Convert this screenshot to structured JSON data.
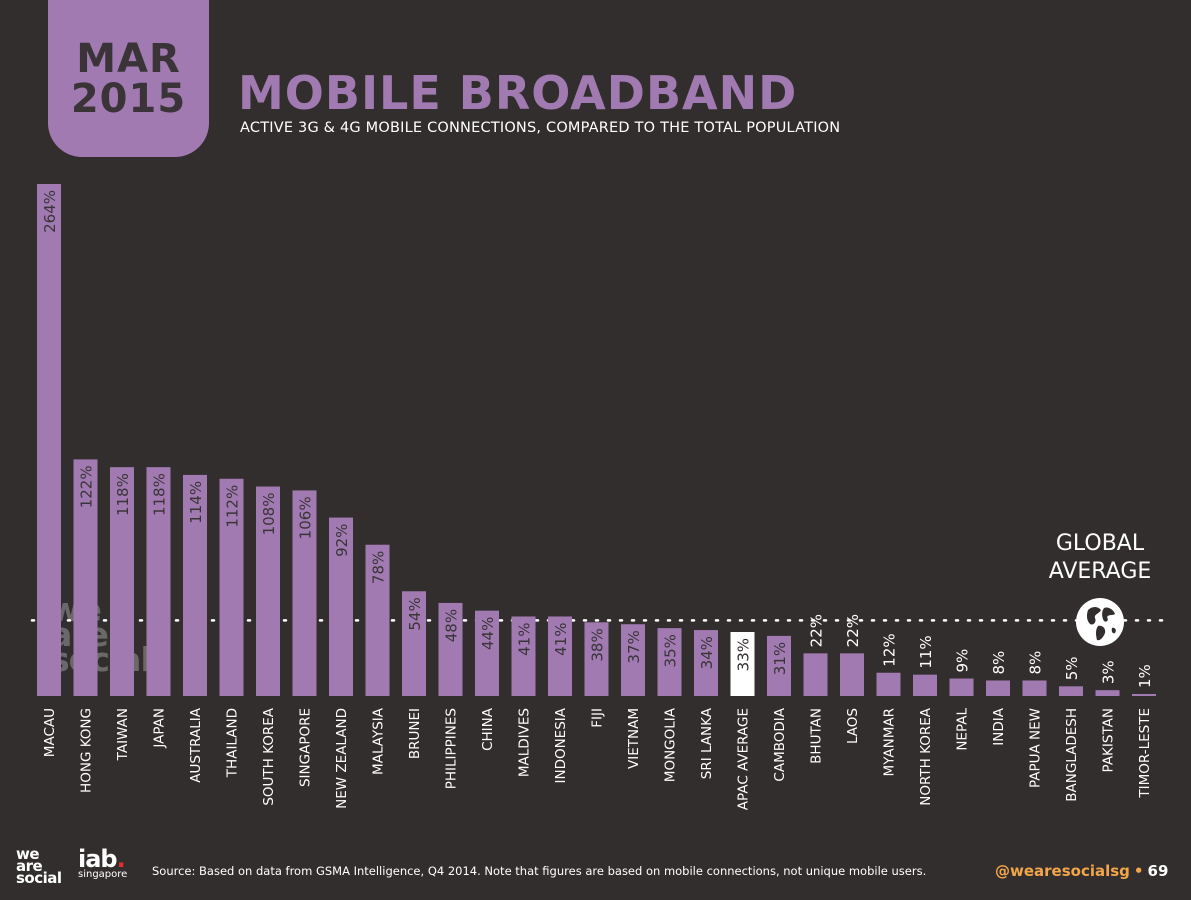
{
  "header": {
    "month": "MAR",
    "year": "2015",
    "title": "MOBILE BROADBAND",
    "subtitle": "ACTIVE 3G & 4G MOBILE CONNECTIONS, COMPARED TO THE TOTAL POPULATION"
  },
  "global_average": {
    "label_line1": "GLOBAL",
    "label_line2": "AVERAGE",
    "icon": "globe-icon"
  },
  "watermark": {
    "line1": "we",
    "line2": "are",
    "line3": "social"
  },
  "footer": {
    "logo_line1": "we",
    "logo_line2": "are",
    "logo_line3": "social",
    "iab_text": "iab",
    "iab_dot": ".",
    "iab_sub": "singapore",
    "source": "Source: Based on data from GSMA Intelligence, Q4 2014. Note that figures are based on mobile connections, not unique mobile users.",
    "handle": "@wearesocialsg",
    "separator": "•",
    "page": "69"
  },
  "colors": {
    "background": "#332e2e",
    "accent": "#a07ab0",
    "highlight": "#ffffff",
    "handle": "#f2a64a"
  },
  "chart_data": {
    "type": "bar",
    "categories": [
      "MACAU",
      "HONG KONG",
      "TAIWAN",
      "JAPAN",
      "AUSTRALIA",
      "THAILAND",
      "SOUTH KOREA",
      "SINGAPORE",
      "NEW ZEALAND",
      "MALAYSIA",
      "BRUNEI",
      "PHILIPPINES",
      "CHINA",
      "MALDIVES",
      "INDONESIA",
      "FIJI",
      "VIETNAM",
      "MONGOLIA",
      "SRI LANKA",
      "APAC AVERAGE",
      "CAMBODIA",
      "BHUTAN",
      "LAOS",
      "MYANMAR",
      "NORTH KOREA",
      "NEPAL",
      "INDIA",
      "PAPUA NEW",
      "BANGLADESH",
      "PAKISTAN",
      "TIMOR-LESTE"
    ],
    "values": [
      264,
      122,
      118,
      118,
      114,
      112,
      108,
      106,
      92,
      78,
      54,
      48,
      44,
      41,
      41,
      38,
      37,
      35,
      34,
      33,
      31,
      22,
      22,
      12,
      11,
      9,
      8,
      8,
      5,
      3,
      1
    ],
    "labels": [
      "264%",
      "122%",
      "118%",
      "118%",
      "114%",
      "112%",
      "108%",
      "106%",
      "92%",
      "78%",
      "54%",
      "48%",
      "44%",
      "41%",
      "41%",
      "38%",
      "37%",
      "35%",
      "34%",
      "33%",
      "31%",
      "22%",
      "22%",
      "12%",
      "11%",
      "9%",
      "8%",
      "8%",
      "5%",
      "3%",
      "1%"
    ],
    "highlight_category": "APAC AVERAGE",
    "reference_line": {
      "value": 39
    },
    "ylim": [
      0,
      264
    ]
  }
}
